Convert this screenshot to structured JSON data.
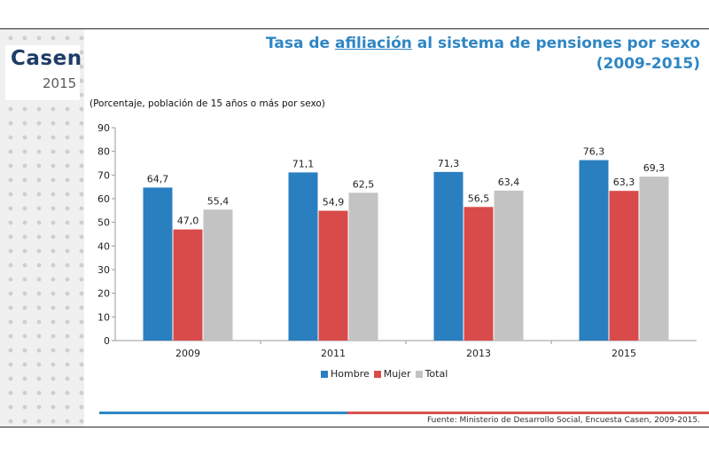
{
  "logo": {
    "name": "Casen",
    "year": "2015"
  },
  "title": {
    "before": "Tasa de ",
    "underlined": "afiliación",
    "after": " al sistema de pensiones por sexo",
    "line2": "(2009-2015)"
  },
  "subtitle": "(Porcentaje, población de 15 años o más por sexo)",
  "source": "Fuente: Ministerio de Desarrollo Social, Encuesta Casen, 2009-2015.",
  "chart_data": {
    "type": "bar",
    "categories": [
      "2009",
      "2011",
      "2013",
      "2015"
    ],
    "series": [
      {
        "name": "Hombre",
        "color": "#2a7fc0",
        "values": [
          64.7,
          71.1,
          71.3,
          76.3
        ],
        "labels": [
          "64,7",
          "71,1",
          "71,3",
          "76,3"
        ]
      },
      {
        "name": "Mujer",
        "color": "#d94b4b",
        "values": [
          47.0,
          54.9,
          56.5,
          63.3
        ],
        "labels": [
          "47,0",
          "54,9",
          "56,5",
          "63,3"
        ]
      },
      {
        "name": "Total",
        "color": "#c3c3c3",
        "values": [
          55.4,
          62.5,
          63.4,
          69.3
        ],
        "labels": [
          "55,4",
          "62,5",
          "63,4",
          "69,3"
        ]
      }
    ],
    "ylim": [
      0,
      90
    ],
    "yticks": [
      "0",
      "10",
      "20",
      "30",
      "40",
      "50",
      "60",
      "70",
      "80",
      "90"
    ],
    "grid": false,
    "legend": "bottom"
  }
}
